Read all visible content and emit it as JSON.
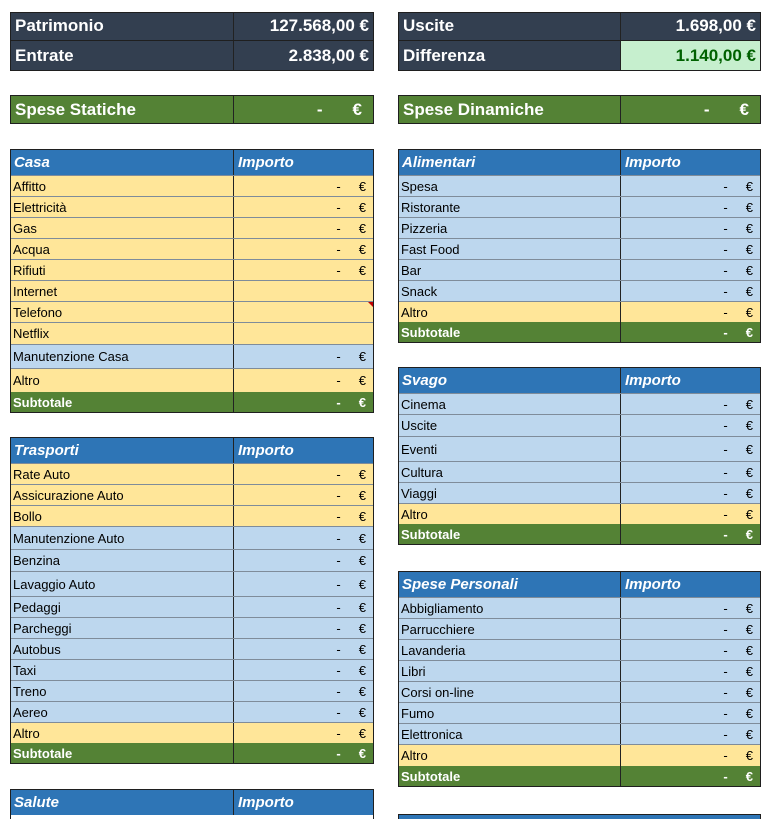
{
  "summary": {
    "patrimonio": {
      "label": "Patrimonio",
      "value": "127.568,00 €"
    },
    "entrate": {
      "label": "Entrate",
      "value": "2.838,00 €"
    },
    "uscite": {
      "label": "Uscite",
      "value": "1.698,00 €"
    },
    "differenza": {
      "label": "Differenza",
      "value": "1.140,00 €"
    }
  },
  "headers": {
    "spese_statiche": {
      "label": "Spese Statiche",
      "dash": "-",
      "euro": "€"
    },
    "spese_dinamiche": {
      "label": "Spese Dinamiche",
      "dash": "-",
      "euro": "€"
    }
  },
  "common": {
    "importo": "Importo",
    "dash": "-",
    "euro": "€",
    "subtotale": "Subtotale"
  },
  "casa": {
    "title": "Casa",
    "rows": [
      {
        "label": "Affitto",
        "dash": "-",
        "euro": "€"
      },
      {
        "label": "Elettricità",
        "dash": "-",
        "euro": "€"
      },
      {
        "label": "Gas",
        "dash": "-",
        "euro": "€"
      },
      {
        "label": "Acqua",
        "dash": "-",
        "euro": "€"
      },
      {
        "label": "Rifiuti",
        "dash": "-",
        "euro": "€"
      },
      {
        "label": "Internet",
        "dash": "",
        "euro": ""
      },
      {
        "label": "Telefono",
        "dash": "",
        "euro": ""
      },
      {
        "label": "Netflix",
        "dash": "",
        "euro": ""
      },
      {
        "label": "Manutenzione Casa",
        "dash": "-",
        "euro": "€"
      },
      {
        "label": "Altro",
        "dash": "-",
        "euro": "€"
      }
    ]
  },
  "trasporti": {
    "title": "Trasporti",
    "rows": [
      {
        "label": "Rate Auto",
        "dash": "-",
        "euro": "€"
      },
      {
        "label": "Assicurazione Auto",
        "dash": "-",
        "euro": "€"
      },
      {
        "label": "Bollo",
        "dash": "-",
        "euro": "€"
      },
      {
        "label": "Manutenzione Auto",
        "dash": "-",
        "euro": "€"
      },
      {
        "label": "Benzina",
        "dash": "-",
        "euro": "€"
      },
      {
        "label": "Lavaggio Auto",
        "dash": "-",
        "euro": "€"
      },
      {
        "label": "Pedaggi",
        "dash": "-",
        "euro": "€"
      },
      {
        "label": "Parcheggi",
        "dash": "-",
        "euro": "€"
      },
      {
        "label": "Autobus",
        "dash": "-",
        "euro": "€"
      },
      {
        "label": "Taxi",
        "dash": "-",
        "euro": "€"
      },
      {
        "label": "Treno",
        "dash": "-",
        "euro": "€"
      },
      {
        "label": "Aereo",
        "dash": "-",
        "euro": "€"
      },
      {
        "label": "Altro",
        "dash": "-",
        "euro": "€"
      }
    ]
  },
  "salute": {
    "title": "Salute"
  },
  "alimentari": {
    "title": "Alimentari",
    "rows": [
      {
        "label": "Spesa",
        "dash": "-",
        "euro": "€"
      },
      {
        "label": "Ristorante",
        "dash": "-",
        "euro": "€"
      },
      {
        "label": "Pizzeria",
        "dash": "-",
        "euro": "€"
      },
      {
        "label": "Fast Food",
        "dash": "-",
        "euro": "€"
      },
      {
        "label": "Bar",
        "dash": "-",
        "euro": "€"
      },
      {
        "label": "Snack",
        "dash": "-",
        "euro": "€"
      },
      {
        "label": "Altro",
        "dash": "-",
        "euro": "€"
      }
    ]
  },
  "svago": {
    "title": "Svago",
    "rows": [
      {
        "label": "Cinema",
        "dash": "-",
        "euro": "€"
      },
      {
        "label": "Uscite",
        "dash": "-",
        "euro": "€"
      },
      {
        "label": "Eventi",
        "dash": "-",
        "euro": "€"
      },
      {
        "label": "Cultura",
        "dash": "-",
        "euro": "€"
      },
      {
        "label": "Viaggi",
        "dash": "-",
        "euro": "€"
      },
      {
        "label": "Altro",
        "dash": "-",
        "euro": "€"
      }
    ]
  },
  "personali": {
    "title": "Spese Personali",
    "rows": [
      {
        "label": "Abbigliamento",
        "dash": "-",
        "euro": "€"
      },
      {
        "label": "Parrucchiere",
        "dash": "-",
        "euro": "€"
      },
      {
        "label": "Lavanderia",
        "dash": "-",
        "euro": "€"
      },
      {
        "label": "Libri",
        "dash": "-",
        "euro": "€"
      },
      {
        "label": "Corsi on-line",
        "dash": "-",
        "euro": "€"
      },
      {
        "label": "Fumo",
        "dash": "-",
        "euro": "€"
      },
      {
        "label": "Elettronica",
        "dash": "-",
        "euro": "€"
      },
      {
        "label": "Altro",
        "dash": "-",
        "euro": "€"
      }
    ]
  },
  "colors": {
    "dark": "#333f50",
    "green": "#548235",
    "blue_header": "#2e75b6",
    "yellow_row": "#ffe699",
    "blue_row": "#bdd7ee",
    "positive_bg": "#c6efce",
    "positive_text": "#006100"
  }
}
